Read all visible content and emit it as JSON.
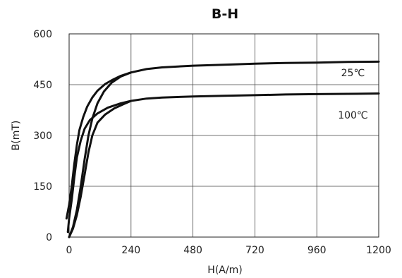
{
  "chart_data": {
    "type": "line",
    "title": "B-H",
    "xlabel": "H(A/m)",
    "ylabel": "B(mT)",
    "xlim": [
      0,
      1200
    ],
    "ylim": [
      0,
      600
    ],
    "x_ticks": [
      "0",
      "240",
      "480",
      "720",
      "960",
      "1200"
    ],
    "y_ticks": [
      "0",
      "150",
      "300",
      "450",
      "600"
    ],
    "x_tick_values": [
      0,
      240,
      480,
      720,
      960,
      1200
    ],
    "y_tick_values": [
      0,
      150,
      300,
      450,
      600
    ],
    "grid": true,
    "series": [
      {
        "name": "25℃",
        "label_x": 1100,
        "label_y": 485,
        "upper": [
          [
            -10,
            55
          ],
          [
            0,
            95
          ],
          [
            10,
            150
          ],
          [
            20,
            215
          ],
          [
            30,
            272
          ],
          [
            40,
            316
          ],
          [
            55,
            355
          ],
          [
            70,
            385
          ],
          [
            90,
            412
          ],
          [
            110,
            432
          ],
          [
            140,
            452
          ],
          [
            170,
            465
          ],
          [
            200,
            476
          ],
          [
            240,
            486
          ],
          [
            300,
            496
          ],
          [
            360,
            501
          ],
          [
            480,
            506
          ],
          [
            600,
            509
          ],
          [
            720,
            512
          ],
          [
            840,
            514
          ],
          [
            960,
            515
          ],
          [
            1080,
            517
          ],
          [
            1200,
            518
          ]
        ],
        "lower": [
          [
            0,
            0
          ],
          [
            15,
            30
          ],
          [
            30,
            80
          ],
          [
            45,
            150
          ],
          [
            60,
            230
          ],
          [
            75,
            300
          ],
          [
            90,
            350
          ],
          [
            110,
            395
          ],
          [
            135,
            430
          ],
          [
            165,
            456
          ],
          [
            200,
            474
          ],
          [
            240,
            486
          ]
        ]
      },
      {
        "name": "100℃",
        "label_x": 1100,
        "label_y": 360,
        "upper": [
          [
            -5,
            15
          ],
          [
            0,
            55
          ],
          [
            10,
            110
          ],
          [
            20,
            175
          ],
          [
            30,
            235
          ],
          [
            45,
            285
          ],
          [
            60,
            320
          ],
          [
            80,
            345
          ],
          [
            110,
            365
          ],
          [
            150,
            382
          ],
          [
            200,
            395
          ],
          [
            240,
            402
          ],
          [
            300,
            409
          ],
          [
            360,
            412
          ],
          [
            480,
            415
          ],
          [
            600,
            417
          ],
          [
            720,
            419
          ],
          [
            840,
            421
          ],
          [
            960,
            422
          ],
          [
            1080,
            423
          ],
          [
            1200,
            424
          ]
        ],
        "lower": [
          [
            0,
            0
          ],
          [
            15,
            25
          ],
          [
            30,
            65
          ],
          [
            45,
            120
          ],
          [
            60,
            185
          ],
          [
            75,
            250
          ],
          [
            90,
            300
          ],
          [
            110,
            338
          ],
          [
            140,
            362
          ],
          [
            175,
            380
          ],
          [
            210,
            392
          ],
          [
            240,
            402
          ]
        ]
      }
    ]
  }
}
